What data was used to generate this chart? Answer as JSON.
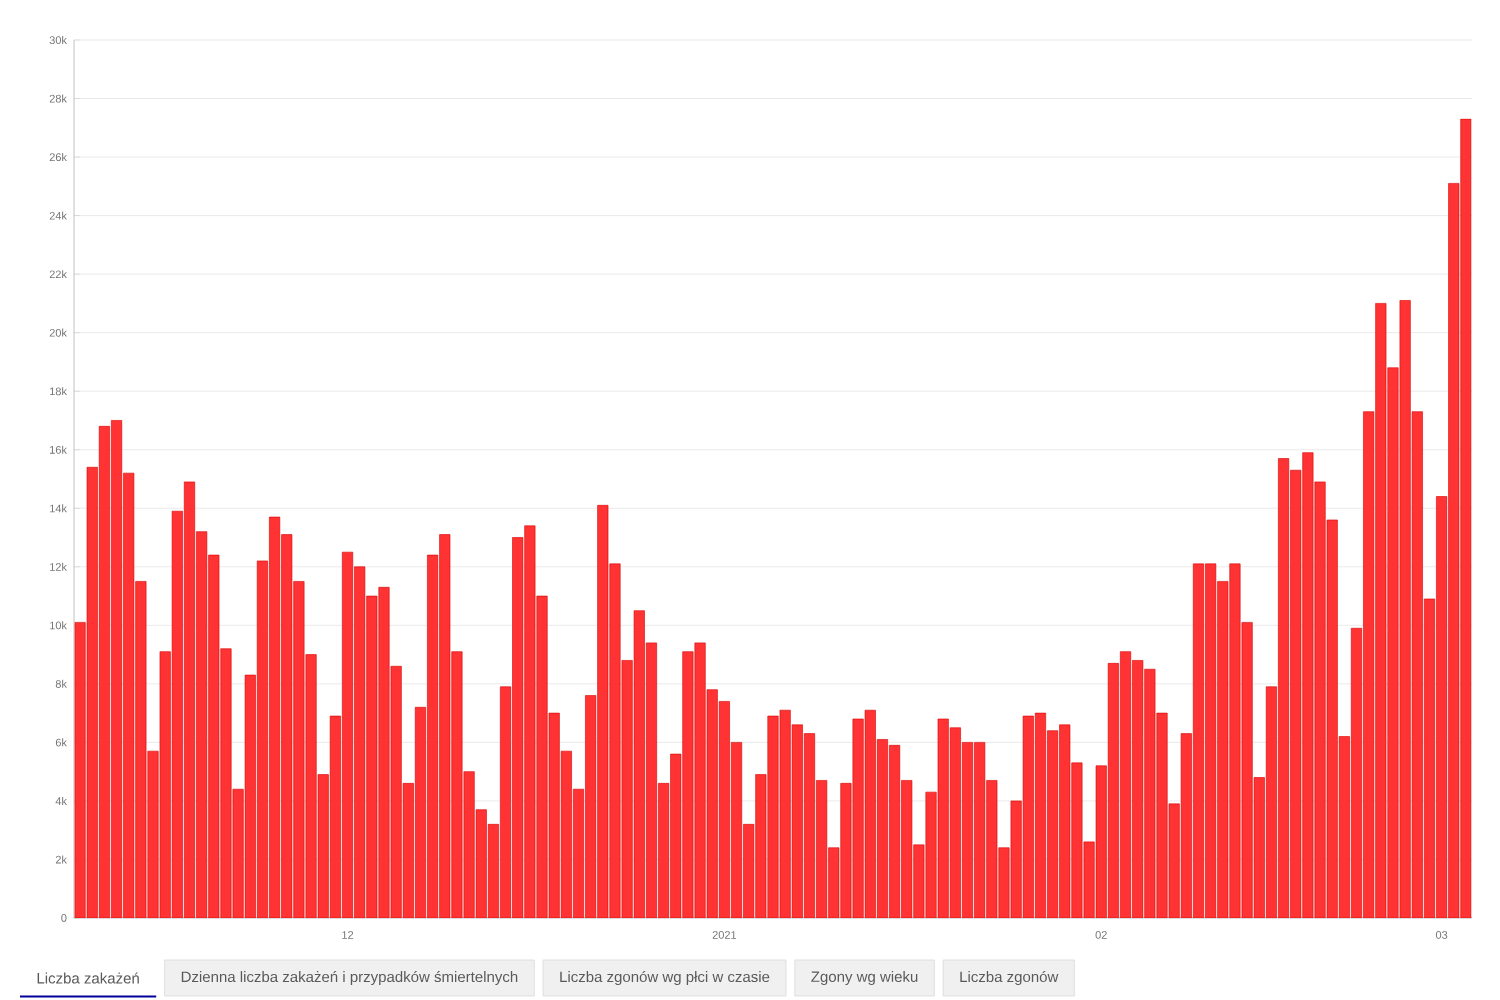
{
  "chart_data": {
    "type": "bar",
    "categories": [
      null,
      null,
      null,
      null,
      null,
      null,
      null,
      null,
      null,
      null,
      null,
      null,
      null,
      null,
      null,
      null,
      null,
      null,
      null,
      null,
      null,
      null,
      "12",
      null,
      null,
      null,
      null,
      null,
      null,
      null,
      null,
      null,
      null,
      null,
      null,
      null,
      null,
      null,
      null,
      null,
      null,
      null,
      null,
      null,
      null,
      null,
      null,
      null,
      null,
      null,
      null,
      null,
      null,
      "2021",
      null,
      null,
      null,
      null,
      null,
      null,
      null,
      null,
      null,
      null,
      null,
      null,
      null,
      null,
      null,
      null,
      null,
      null,
      null,
      null,
      null,
      null,
      null,
      null,
      null,
      null,
      null,
      null,
      null,
      null,
      "02",
      null,
      null,
      null,
      null,
      null,
      null,
      null,
      null,
      null,
      null,
      null,
      null,
      null,
      null,
      null,
      null,
      null,
      null,
      null,
      null,
      null,
      null,
      null,
      null,
      null,
      null,
      null,
      "03",
      null,
      null
    ],
    "values": [
      10100,
      15400,
      16800,
      17000,
      15200,
      11500,
      5700,
      9100,
      13900,
      14900,
      13200,
      12400,
      9200,
      4400,
      8300,
      12200,
      13700,
      13100,
      11500,
      9000,
      4900,
      6900,
      12500,
      12000,
      11000,
      11300,
      8600,
      4600,
      7200,
      12400,
      13100,
      9100,
      5000,
      3700,
      3200,
      7900,
      13000,
      13400,
      11000,
      7000,
      5700,
      4400,
      7600,
      14100,
      12100,
      8800,
      10500,
      9400,
      4600,
      5600,
      9100,
      9400,
      7800,
      7400,
      6000,
      3200,
      4900,
      6900,
      7100,
      6600,
      6300,
      4700,
      2400,
      4600,
      6800,
      7100,
      6100,
      5900,
      4700,
      2500,
      4300,
      6800,
      6500,
      6000,
      6000,
      4700,
      2400,
      4000,
      6900,
      7000,
      6400,
      6600,
      5300,
      2600,
      5200,
      8700,
      9100,
      8800,
      8500,
      7000,
      3900,
      6300,
      12100,
      12100,
      11500,
      12100,
      10100,
      4800,
      7900,
      15700,
      15300,
      15900,
      14900,
      13600,
      6200,
      9900,
      17300,
      21000,
      18800,
      21100,
      17300,
      10900,
      14400,
      25100,
      27300
    ],
    "color": "#ff3333",
    "ylim": [
      0,
      30000
    ],
    "yticks": [
      {
        "value": 0,
        "label": "0"
      },
      {
        "value": 2000,
        "label": "2k"
      },
      {
        "value": 4000,
        "label": "4k"
      },
      {
        "value": 6000,
        "label": "6k"
      },
      {
        "value": 8000,
        "label": "8k"
      },
      {
        "value": 10000,
        "label": "10k"
      },
      {
        "value": 12000,
        "label": "12k"
      },
      {
        "value": 14000,
        "label": "14k"
      },
      {
        "value": 16000,
        "label": "16k"
      },
      {
        "value": 18000,
        "label": "18k"
      },
      {
        "value": 20000,
        "label": "20k"
      },
      {
        "value": 22000,
        "label": "22k"
      },
      {
        "value": 24000,
        "label": "24k"
      },
      {
        "value": 26000,
        "label": "26k"
      },
      {
        "value": 28000,
        "label": "28k"
      },
      {
        "value": 30000,
        "label": "30k"
      }
    ],
    "grid": "y",
    "annotations": [
      "Liczba zakażeń",
      "Dzienna liczba zakażeń i przypadków śmiertelnych",
      "Liczba zgonów wg płci w czasie",
      "Zgony wg wieku",
      "Liczba zgonów"
    ]
  }
}
